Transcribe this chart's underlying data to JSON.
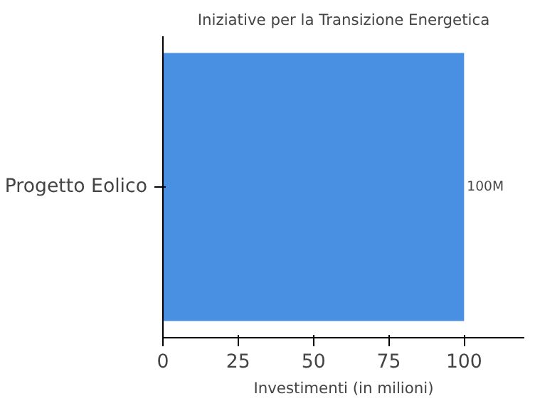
{
  "chart_data": {
    "type": "bar",
    "orientation": "horizontal",
    "title": "Iniziative per la Transizione Energetica",
    "xlabel": "Investimenti (in milioni)",
    "categories": [
      "Progetto Eolico"
    ],
    "values": [
      100
    ],
    "value_labels": [
      "100M"
    ],
    "color": "#4a90e2",
    "xlim": [
      0,
      120
    ],
    "xticks": [
      0,
      25,
      50,
      75,
      100
    ],
    "grid": false
  }
}
